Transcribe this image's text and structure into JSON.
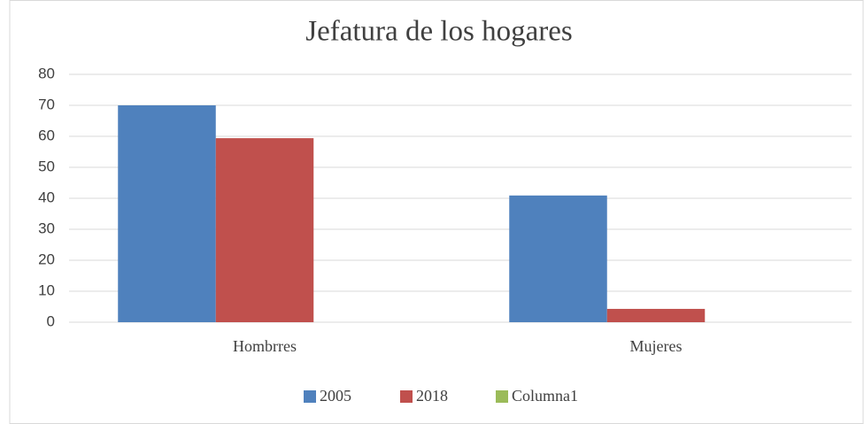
{
  "chart_data": {
    "type": "bar",
    "title": "Jefatura de los hogares",
    "categories": [
      "Hombrres",
      "Mujeres"
    ],
    "series": [
      {
        "name": "2005",
        "color": "#4f81bd",
        "values": [
          70,
          40.9
        ]
      },
      {
        "name": "2018",
        "color": "#c0504d",
        "values": [
          59.4,
          4.3
        ]
      },
      {
        "name": "Columna1",
        "color": "#9bbb59",
        "values": [
          null,
          null
        ]
      }
    ],
    "ylim": [
      0,
      80
    ],
    "yticks": [
      0,
      10,
      20,
      30,
      40,
      50,
      60,
      70,
      80
    ],
    "grid": true,
    "legend": "bottom"
  }
}
